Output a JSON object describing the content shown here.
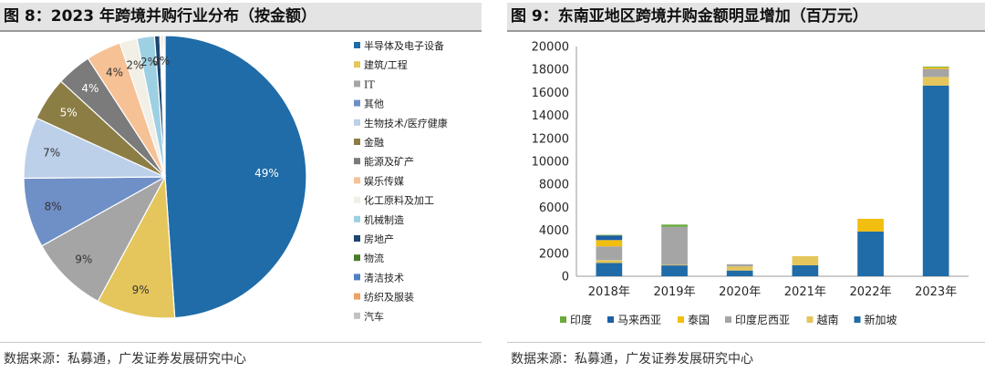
{
  "left_panel": {
    "title": "图 8：2023 年跨境并购行业分布（按金额）",
    "source": "数据来源：私募通，广发证券发展研究中心"
  },
  "right_panel": {
    "title": "图 9：东南亚地区跨境并购金额明显增加（百万元）",
    "source": "数据来源：私募通，广发证券发展研究中心"
  },
  "chart_data": [
    {
      "type": "pie",
      "title": "2023 年跨境并购行业分布（按金额）",
      "slices": [
        {
          "label": "半导体及电子设备",
          "value": 49,
          "display": "49%",
          "color": "#1f6ca8",
          "text_color": "#ffffff"
        },
        {
          "label": "建筑/工程",
          "value": 9,
          "display": "9%",
          "color": "#e4c65c",
          "text_color": "#333333"
        },
        {
          "label": "IT",
          "value": 9,
          "display": "9%",
          "color": "#a5a5a5",
          "text_color": "#333333"
        },
        {
          "label": "其他",
          "value": 8,
          "display": "8%",
          "color": "#6f8fc7",
          "text_color": "#333333"
        },
        {
          "label": "生物技术/医疗健康",
          "value": 7,
          "display": "7%",
          "color": "#bdd0ea",
          "text_color": "#333333"
        },
        {
          "label": "金融",
          "value": 5,
          "display": "5%",
          "color": "#8c7d45",
          "text_color": "#ffffff"
        },
        {
          "label": "能源及矿产",
          "value": 4,
          "display": "4%",
          "color": "#7b7b7b",
          "text_color": "#ffffff"
        },
        {
          "label": "娱乐传媒",
          "value": 4,
          "display": "4%",
          "color": "#f6c195",
          "text_color": "#333333"
        },
        {
          "label": "化工原料及加工",
          "value": 2,
          "display": "2%",
          "color": "#f1efe6",
          "text_color": "#333333"
        },
        {
          "label": "机械制造",
          "value": 2,
          "display": "2%",
          "color": "#9dd0e3",
          "text_color": "#333333"
        },
        {
          "label": "房地产",
          "value": 0.6,
          "display": "",
          "color": "#1d4670",
          "text_color": "#333333"
        },
        {
          "label": "物流",
          "value": 0.15,
          "display": "0%",
          "color": "#4a7c2a",
          "text_color": "#333333"
        },
        {
          "label": "清洁技术",
          "value": 0.15,
          "display": "",
          "color": "#4f80c4",
          "text_color": "#333333"
        },
        {
          "label": "纺织及服装",
          "value": 0.15,
          "display": "",
          "color": "#f0a060",
          "text_color": "#333333"
        },
        {
          "label": "汽车",
          "value": 0.15,
          "display": "",
          "color": "#c2c2c2",
          "text_color": "#333333"
        }
      ]
    },
    {
      "type": "bar",
      "stacked": true,
      "title": "东南亚地区跨境并购金额明显增加（百万元）",
      "categories": [
        "2018年",
        "2019年",
        "2020年",
        "2021年",
        "2022年",
        "2023年"
      ],
      "ylim": [
        0,
        20000
      ],
      "yticks": [
        0,
        2000,
        4000,
        6000,
        8000,
        10000,
        12000,
        14000,
        16000,
        18000,
        20000
      ],
      "legend_position": "bottom",
      "series": [
        {
          "name": "新加坡",
          "color": "#1f6ca8",
          "values": [
            1150,
            950,
            500,
            950,
            3900,
            16600
          ]
        },
        {
          "name": "越南",
          "color": "#e4c65c",
          "values": [
            250,
            50,
            350,
            800,
            0,
            750
          ]
        },
        {
          "name": "印度尼西亚",
          "color": "#a5a5a5",
          "values": [
            1200,
            3300,
            200,
            0,
            0,
            700
          ]
        },
        {
          "name": "泰国",
          "color": "#f2be0f",
          "values": [
            550,
            0,
            0,
            0,
            1100,
            150
          ]
        },
        {
          "name": "马来西亚",
          "color": "#1f5fa8",
          "values": [
            400,
            0,
            0,
            0,
            0,
            0
          ]
        },
        {
          "name": "印度",
          "color": "#6aaa3c",
          "values": [
            50,
            200,
            0,
            0,
            0,
            50
          ]
        }
      ],
      "legend_order": [
        "印度",
        "马来西亚",
        "泰国",
        "印度尼西亚",
        "越南",
        "新加坡"
      ]
    }
  ]
}
